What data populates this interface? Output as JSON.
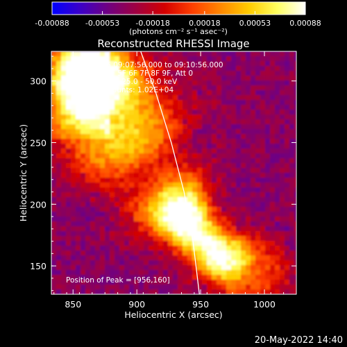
{
  "chart_data": {
    "type": "heatmap",
    "title": "Reconstructed RHESSI Image",
    "xlabel": "Heliocentric X (arcsec)",
    "ylabel": "Heliocentric Y (arcsec)",
    "xlim": [
      833,
      1025
    ],
    "ylim": [
      127,
      324
    ],
    "x_ticks": [
      850,
      900,
      950,
      1000
    ],
    "y_ticks": [
      150,
      200,
      250,
      300
    ],
    "grid": false,
    "colorbar": {
      "orientation": "horizontal",
      "position": "top",
      "range": [
        -0.00088,
        0.00088
      ],
      "tick_values": [
        -0.00088,
        -0.00053,
        -0.00018,
        0.00018,
        0.00053,
        0.00088
      ],
      "tick_labels": [
        "-0.00088",
        "-0.00053",
        "-0.00018",
        "0.00018",
        "0.00053",
        "0.00088"
      ],
      "label": "(photons cm⁻² s⁻¹ asec⁻²)",
      "colormap": [
        "#0000ff",
        "#3c00c8",
        "#700080",
        "#a00040",
        "#d40000",
        "#ff4000",
        "#ff8800",
        "#ffcc00",
        "#ffff60",
        "#ffffff"
      ]
    },
    "annotations": [
      "21-Apr-2015 09:07:56.000 to 09:10:56.000",
      "Detectors: 3F 5F 6F 7F 8F 9F, Att 0",
      "Energy Range: 25.0 - 50.0 keV",
      "Clean    Total counts: 1.02E+04"
    ],
    "peak_label": "Position of Peak = [956,160]",
    "peak_position": [
      956,
      160
    ],
    "limb_curve": [
      [
        903,
        324
      ],
      [
        915,
        290
      ],
      [
        927,
        250
      ],
      [
        937,
        210
      ],
      [
        944,
        170
      ],
      [
        949,
        127
      ]
    ],
    "emission_ridge": [
      [
        866,
        300
      ],
      [
        886,
        262
      ],
      [
        905,
        230
      ],
      [
        920,
        210
      ],
      [
        943,
        180
      ],
      [
        965,
        158
      ],
      [
        992,
        145
      ]
    ],
    "timestamp": "20-May-2022 14:40"
  }
}
